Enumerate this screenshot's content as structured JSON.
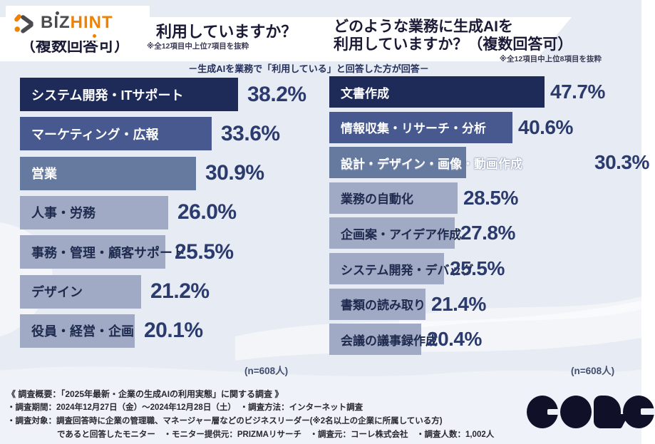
{
  "page": {
    "background": "#e7ebf3",
    "footer_background": "#eff2f8"
  },
  "header": {
    "logo_text_primary": "BIZ",
    "logo_text_secondary": "HINT",
    "left_title_line1": "利用していますか？",
    "left_title_line2": "（複数回答可）",
    "left_note": "※全12項目中上位7項目を抜粋",
    "right_title_line1": "どのような業務に生成AIを",
    "right_title_line2": "利用していますか？（複数回答可）",
    "right_note": "※全12項目中上位8項目を抜粋",
    "subtitle": "－生成AIを業務で「利用している」と回答した方が回答－"
  },
  "chart_data": [
    {
      "type": "bar",
      "orientation": "horizontal",
      "title": "利用していますか？（複数回答可）",
      "note": "※全12項目中上位7項目を抜粋",
      "unit": "%",
      "xlim": [
        0,
        50
      ],
      "grid": false,
      "categories": [
        "システム開発・ITサポート",
        "マーケティング・広報",
        "営業",
        "人事・労務",
        "事務・管理・顧客サポート",
        "デザイン",
        "役員・経営・企画"
      ],
      "values": [
        38.2,
        33.6,
        30.9,
        26.0,
        25.5,
        21.2,
        20.1
      ],
      "sample_label": "(n=608人)"
    },
    {
      "type": "bar",
      "orientation": "horizontal",
      "title": "どのような業務に生成AIを利用していますか？（複数回答可）",
      "note": "※全12項目中上位8項目を抜粋",
      "unit": "%",
      "xlim": [
        0,
        50
      ],
      "grid": false,
      "categories": [
        "文書作成",
        "情報収集・リサーチ・分析",
        "設計・デザイン・画像・動画作成",
        "業務の自動化",
        "企画案・アイデア作成",
        "システム開発・デバッグ",
        "書類の読み取り",
        "会議の議事録作成"
      ],
      "values": [
        47.7,
        40.6,
        30.3,
        28.5,
        27.8,
        25.5,
        21.4,
        20.4
      ],
      "sample_label": "(n=608人)"
    }
  ],
  "colors": {
    "bar_top1": "#1e2a58",
    "bar_top2": "#47598e",
    "bar_top3": "#66799f",
    "bar_rest": "#a0aac4",
    "value_text": "#2c3b6d",
    "label_light": "#ffffff",
    "label_dark": "#1e2a4e",
    "accent_orange": "#ef8200",
    "logo_gray": "#4a4a4f",
    "core_navy": "#101028"
  },
  "footer": {
    "lines": [
      "《 調査概要：「2025年最新・企業の生成AIの利用実態」に関する調査 》",
      "・調査期間：2024年12月27日（金）～2024年12月28日（土）　・調査方法：インターネット調査",
      "・調査対象：調査回答時に企業の管理職、マネージャー層などのビジネスリーダー(※2名以上の企業に所属している方)",
      "であると回答したモニター　・モニター提供元：PRIZMAリサーチ　・調査元：コーレ株式会社　・調査人数：1,002人"
    ]
  },
  "footer_logo_text": "CORE"
}
